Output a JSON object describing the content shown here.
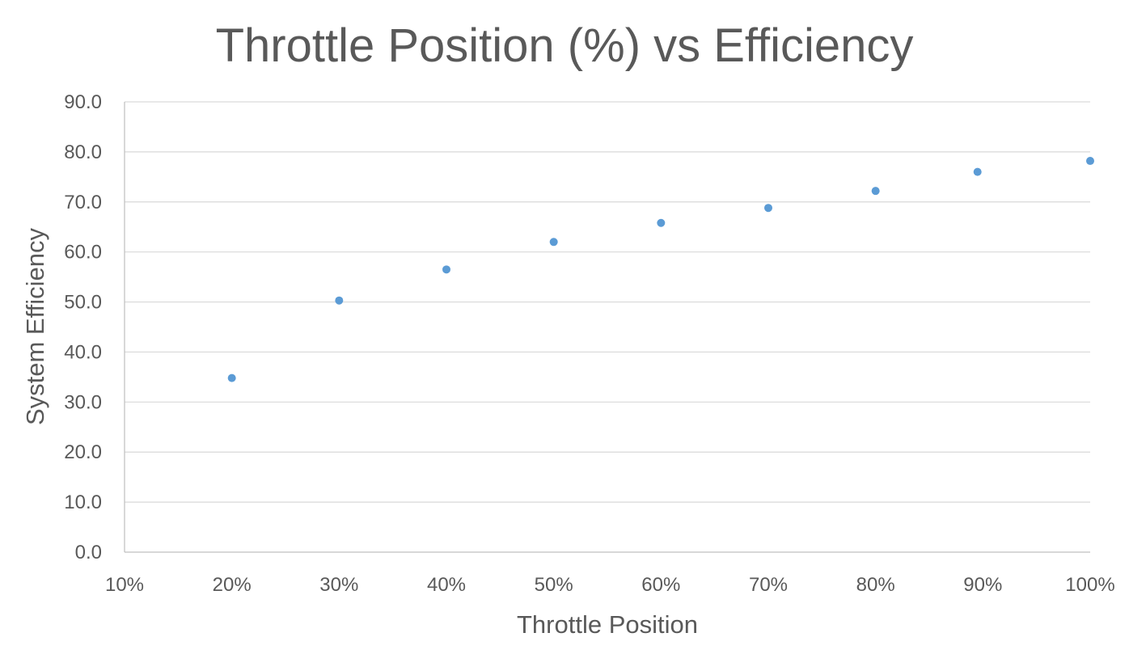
{
  "chart_data": {
    "type": "scatter",
    "title": "Throttle Position (%) vs Efficiency",
    "xlabel": "Throttle Position",
    "ylabel": "System Efficiency",
    "xlim": [
      10,
      100
    ],
    "ylim": [
      0,
      90
    ],
    "x_ticks": [
      "10%",
      "20%",
      "30%",
      "40%",
      "50%",
      "60%",
      "70%",
      "80%",
      "90%",
      "100%"
    ],
    "y_ticks": [
      "0.0",
      "10.0",
      "20.0",
      "30.0",
      "40.0",
      "50.0",
      "60.0",
      "70.0",
      "80.0",
      "90.0"
    ],
    "grid": true,
    "legend": "none",
    "marker_color": "#5b9bd5",
    "series": [
      {
        "points": [
          {
            "x": 20,
            "y": 34.8
          },
          {
            "x": 30,
            "y": 50.3
          },
          {
            "x": 40,
            "y": 56.5
          },
          {
            "x": 50,
            "y": 62.0
          },
          {
            "x": 60,
            "y": 65.8
          },
          {
            "x": 70,
            "y": 68.8
          },
          {
            "x": 80,
            "y": 72.2
          },
          {
            "x": 89.5,
            "y": 76.0
          },
          {
            "x": 100,
            "y": 78.2
          }
        ]
      }
    ]
  }
}
